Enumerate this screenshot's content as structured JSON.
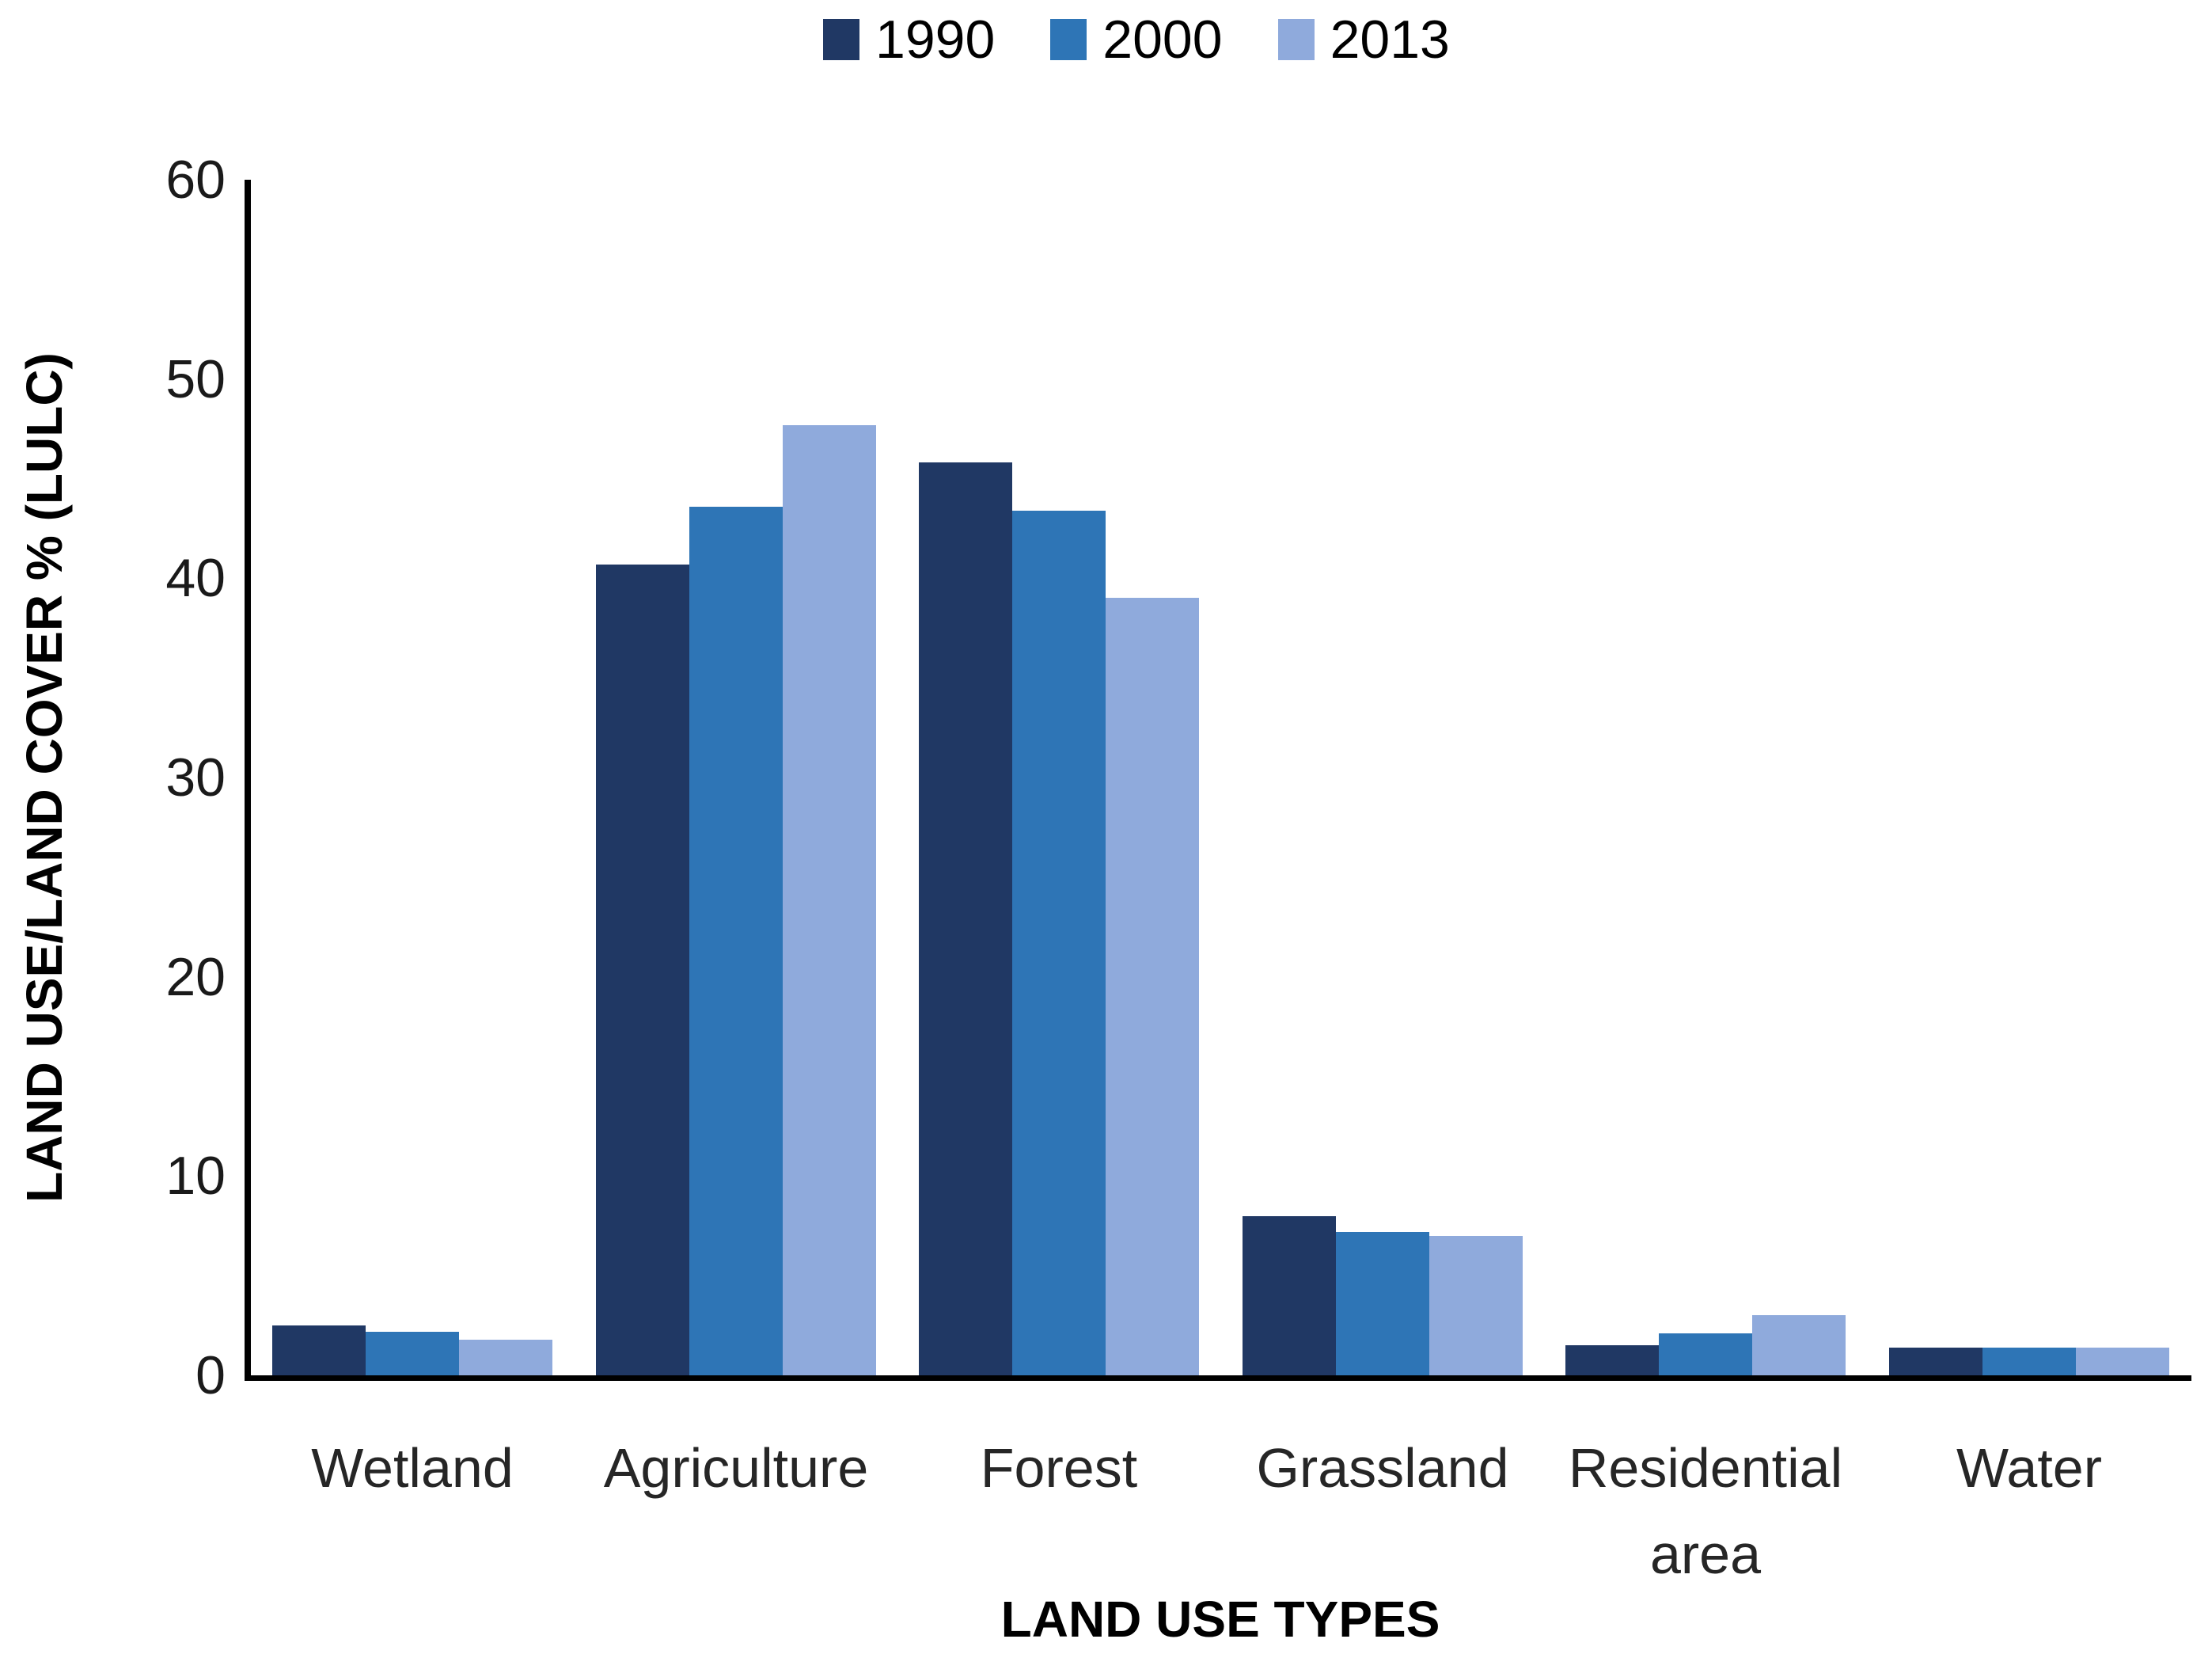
{
  "chart_data": {
    "type": "bar",
    "title": "",
    "xlabel": "LAND USE TYPES",
    "ylabel": "LAND USE/LAND COVER % (LULC)",
    "ylim": [
      0,
      60
    ],
    "yticks": [
      0,
      10,
      20,
      30,
      40,
      50,
      60
    ],
    "grid": false,
    "legend_position": "top",
    "categories": [
      "Wetland",
      "Agriculture",
      "Forest",
      "Grassland",
      "Residential area",
      "Water"
    ],
    "series": [
      {
        "name": "1990",
        "color": "#203864",
        "values": [
          2.5,
          40.7,
          45.8,
          8.0,
          1.5,
          1.4
        ]
      },
      {
        "name": "2000",
        "color": "#2E75B6",
        "values": [
          2.2,
          43.6,
          43.4,
          7.2,
          2.1,
          1.4
        ]
      },
      {
        "name": "2013",
        "color": "#8FAADC",
        "values": [
          1.8,
          47.7,
          39.0,
          7.0,
          3.0,
          1.4
        ]
      }
    ]
  }
}
